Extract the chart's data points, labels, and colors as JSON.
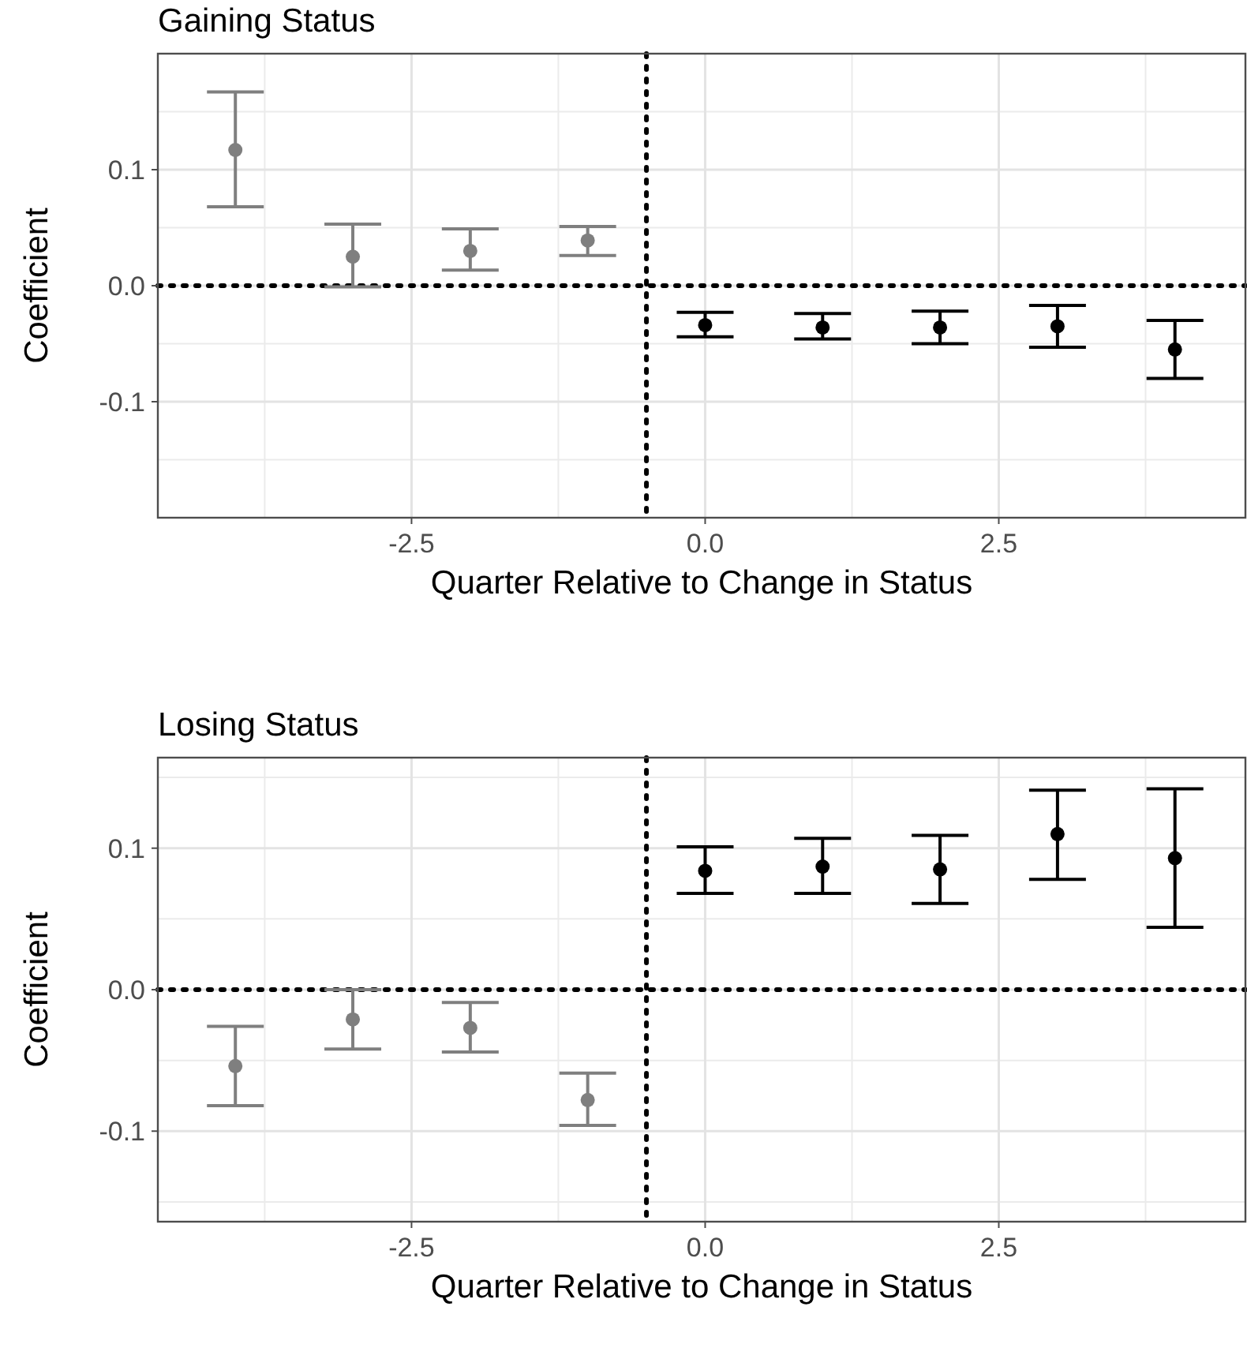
{
  "chart_data": [
    {
      "type": "scatter",
      "title": "Gaining Status",
      "xlabel": "Quarter Relative to Change in Status",
      "ylabel": "Coefficient",
      "xlim": [
        -4.66,
        4.6
      ],
      "ylim": [
        -0.2,
        0.2
      ],
      "xticks": [
        {
          "value": -2.5,
          "label": "-2.5"
        },
        {
          "value": 0,
          "label": "0.0"
        },
        {
          "value": 2.5,
          "label": "2.5"
        }
      ],
      "yticks": [
        {
          "value": -0.1,
          "label": "-0.1"
        },
        {
          "value": 0,
          "label": "0.0"
        },
        {
          "value": 0.1,
          "label": "0.1"
        }
      ],
      "grid": true,
      "marker": "circle",
      "series": [
        {
          "color": "#7f7f7f",
          "x": [
            -4,
            -3,
            -2,
            -1
          ],
          "values": [
            0.117,
            0.025,
            0.03,
            0.039
          ],
          "errors": [
            [
              0.068,
              0.167
            ],
            [
              -0.001,
              0.053
            ],
            [
              0.0135,
              0.049
            ],
            [
              0.026,
              0.051
            ]
          ]
        },
        {
          "color": "#000000",
          "x": [
            0,
            1,
            2,
            3,
            4
          ],
          "values": [
            -0.034,
            -0.036,
            -0.036,
            -0.035,
            -0.055
          ],
          "errors": [
            [
              -0.044,
              -0.023
            ],
            [
              -0.046,
              -0.024
            ],
            [
              -0.05,
              -0.022
            ],
            [
              -0.053,
              -0.017
            ],
            [
              -0.08,
              -0.03
            ]
          ]
        }
      ],
      "ref_lines": [
        {
          "axis": "y",
          "value": 0,
          "line_style": "dotted",
          "color": "#000000"
        },
        {
          "axis": "x",
          "value": -0.5,
          "line_style": "dotted",
          "color": "#000000"
        }
      ]
    },
    {
      "type": "scatter",
      "title": "Losing Status",
      "xlabel": "Quarter Relative to Change in Status",
      "ylabel": "Coefficient",
      "xlim": [
        -4.66,
        4.6
      ],
      "ylim": [
        -0.164,
        0.164
      ],
      "xticks": [
        {
          "value": -2.5,
          "label": "-2.5"
        },
        {
          "value": 0,
          "label": "0.0"
        },
        {
          "value": 2.5,
          "label": "2.5"
        }
      ],
      "yticks": [
        {
          "value": -0.1,
          "label": "-0.1"
        },
        {
          "value": 0,
          "label": "0.0"
        },
        {
          "value": 0.1,
          "label": "0.1"
        }
      ],
      "grid": true,
      "marker": "circle",
      "series": [
        {
          "color": "#7f7f7f",
          "x": [
            -4,
            -3,
            -2,
            -1
          ],
          "values": [
            -0.054,
            -0.021,
            -0.027,
            -0.078
          ],
          "errors": [
            [
              -0.082,
              -0.026
            ],
            [
              -0.042,
              0.0
            ],
            [
              -0.044,
              -0.009
            ],
            [
              -0.096,
              -0.059
            ]
          ]
        },
        {
          "color": "#000000",
          "x": [
            0,
            1,
            2,
            3,
            4
          ],
          "values": [
            0.084,
            0.087,
            0.085,
            0.11,
            0.093
          ],
          "errors": [
            [
              0.068,
              0.101
            ],
            [
              0.068,
              0.107
            ],
            [
              0.061,
              0.109
            ],
            [
              0.078,
              0.141
            ],
            [
              0.044,
              0.142
            ]
          ]
        }
      ],
      "ref_lines": [
        {
          "axis": "y",
          "value": 0,
          "line_style": "dotted",
          "color": "#000000"
        },
        {
          "axis": "x",
          "value": -0.5,
          "line_style": "dotted",
          "color": "#000000"
        }
      ]
    }
  ]
}
